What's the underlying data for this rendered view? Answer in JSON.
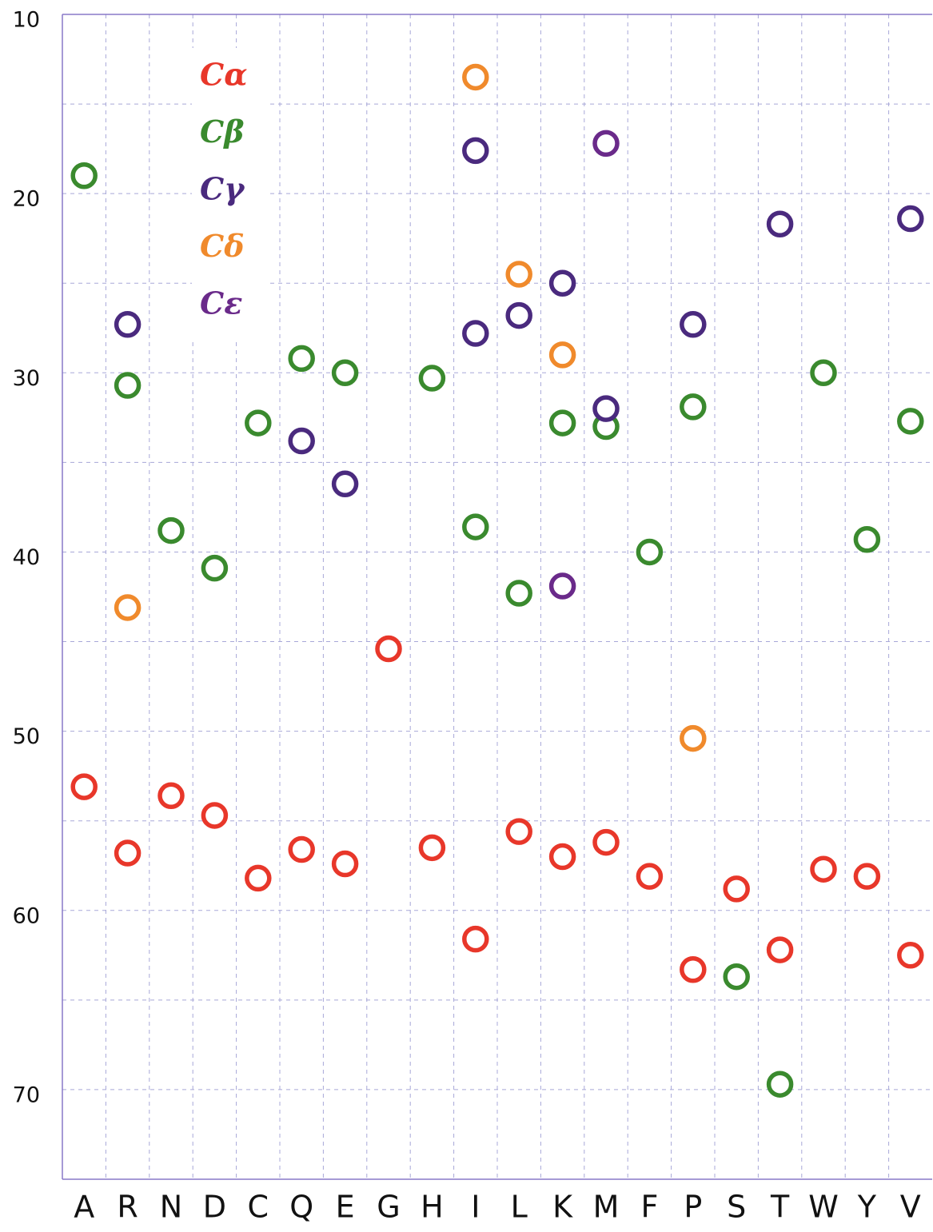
{
  "chart_data": {
    "type": "scatter",
    "categories": [
      "A",
      "R",
      "N",
      "D",
      "C",
      "Q",
      "E",
      "G",
      "H",
      "I",
      "L",
      "K",
      "M",
      "F",
      "P",
      "S",
      "T",
      "W",
      "Y",
      "V"
    ],
    "ylim": [
      10,
      75
    ],
    "yticks": [
      10,
      20,
      30,
      40,
      50,
      60,
      70
    ],
    "minor_yticks": [
      15,
      25,
      35,
      45,
      55,
      65,
      75
    ],
    "inverted_y": true,
    "grid": true,
    "series": [
      {
        "name": "Cα",
        "color": "#e8372a",
        "x": [
          "A",
          "R",
          "N",
          "D",
          "C",
          "Q",
          "E",
          "G",
          "H",
          "I",
          "L",
          "K",
          "M",
          "F",
          "P",
          "S",
          "T",
          "W",
          "Y",
          "V"
        ],
        "values": [
          53.1,
          56.8,
          53.6,
          54.7,
          58.2,
          56.6,
          57.4,
          45.4,
          56.5,
          61.6,
          55.6,
          57.0,
          56.2,
          58.1,
          63.3,
          58.8,
          62.2,
          57.7,
          58.1,
          62.5
        ]
      },
      {
        "name": "Cβ",
        "color": "#3a8a2e",
        "x": [
          "A",
          "R",
          "N",
          "D",
          "C",
          "Q",
          "E",
          "H",
          "I",
          "L",
          "K",
          "M",
          "F",
          "P",
          "S",
          "T",
          "W",
          "Y",
          "V"
        ],
        "values": [
          19.0,
          30.7,
          38.8,
          40.9,
          32.8,
          29.2,
          30.0,
          30.3,
          38.6,
          42.3,
          32.8,
          33.0,
          40.0,
          31.9,
          63.7,
          69.7,
          30.0,
          39.3,
          32.7
        ]
      },
      {
        "name": "Cγ",
        "color": "#4a2a7e",
        "x": [
          "R",
          "Q",
          "E",
          "I",
          "I",
          "L",
          "K",
          "M",
          "P",
          "T",
          "V"
        ],
        "values": [
          27.3,
          33.8,
          36.2,
          17.6,
          27.8,
          26.8,
          25.0,
          32.0,
          27.3,
          21.7,
          21.4
        ]
      },
      {
        "name": "Cδ",
        "color": "#f08a2c",
        "x": [
          "R",
          "I",
          "L",
          "K",
          "P"
        ],
        "values": [
          43.1,
          13.5,
          24.5,
          29.0,
          50.4
        ]
      },
      {
        "name": "Cε",
        "color": "#6a2a8a",
        "x": [
          "M",
          "K"
        ],
        "values": [
          17.2,
          41.9
        ]
      }
    ]
  }
}
